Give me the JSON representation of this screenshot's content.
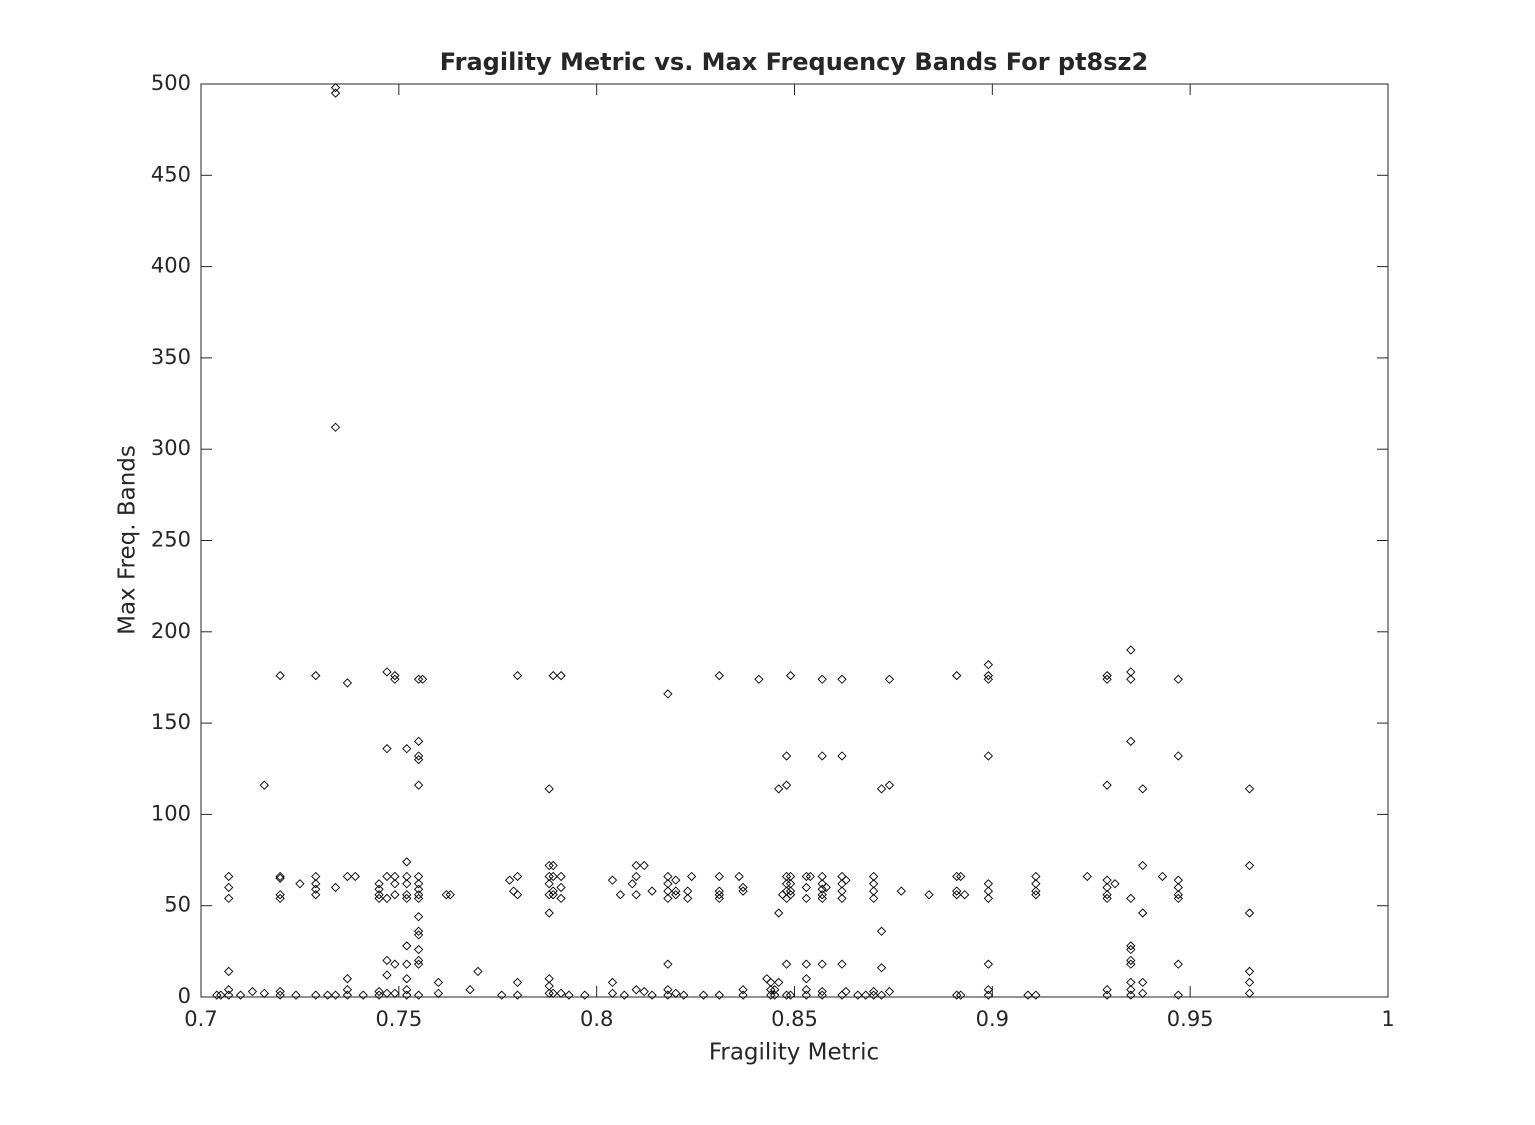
{
  "chart_data": {
    "type": "scatter",
    "title": "Fragility Metric vs. Max Frequency Bands For pt8sz2",
    "x_label": "Fragility Metric",
    "y_label": "Max Freq. Bands",
    "color": "#000000",
    "xlim": [
      0.7,
      1
    ],
    "xticks": [
      0.7,
      0.75,
      0.8,
      0.85,
      0.9,
      0.95,
      1
    ],
    "ylim": [
      0,
      500
    ],
    "yticks": [
      0,
      50,
      100,
      150,
      200,
      250,
      300,
      350,
      400,
      450,
      500
    ],
    "x": [
      0.704,
      0.705,
      0.707,
      0.707,
      0.707,
      0.707,
      0.707,
      0.707,
      0.71,
      0.713,
      0.716,
      0.716,
      0.72,
      0.72,
      0.72,
      0.72,
      0.72,
      0.72,
      0.72,
      0.724,
      0.725,
      0.729,
      0.729,
      0.729,
      0.729,
      0.729,
      0.729,
      0.732,
      0.734,
      0.734,
      0.734,
      0.734,
      0.734,
      0.737,
      0.737,
      0.737,
      0.737,
      0.737,
      0.739,
      0.741,
      0.745,
      0.745,
      0.745,
      0.745,
      0.745,
      0.745,
      0.747,
      0.747,
      0.747,
      0.747,
      0.747,
      0.747,
      0.747,
      0.749,
      0.749,
      0.749,
      0.749,
      0.749,
      0.749,
      0.749,
      0.752,
      0.752,
      0.752,
      0.752,
      0.752,
      0.752,
      0.752,
      0.752,
      0.752,
      0.752,
      0.752,
      0.755,
      0.755,
      0.755,
      0.755,
      0.755,
      0.755,
      0.755,
      0.755,
      0.755,
      0.755,
      0.755,
      0.755,
      0.755,
      0.755,
      0.755,
      0.755,
      0.755,
      0.756,
      0.76,
      0.76,
      0.762,
      0.763,
      0.768,
      0.77,
      0.776,
      0.778,
      0.779,
      0.78,
      0.78,
      0.78,
      0.78,
      0.78,
      0.788,
      0.788,
      0.788,
      0.788,
      0.788,
      0.788,
      0.788,
      0.788,
      0.788,
      0.789,
      0.789,
      0.789,
      0.789,
      0.789,
      0.789,
      0.791,
      0.791,
      0.791,
      0.791,
      0.791,
      0.793,
      0.797,
      0.804,
      0.804,
      0.804,
      0.806,
      0.807,
      0.809,
      0.81,
      0.81,
      0.81,
      0.81,
      0.812,
      0.812,
      0.814,
      0.814,
      0.818,
      0.818,
      0.818,
      0.818,
      0.818,
      0.818,
      0.818,
      0.818,
      0.82,
      0.82,
      0.82,
      0.82,
      0.822,
      0.823,
      0.823,
      0.824,
      0.827,
      0.831,
      0.831,
      0.831,
      0.831,
      0.831,
      0.831,
      0.836,
      0.837,
      0.837,
      0.837,
      0.837,
      0.841,
      0.843,
      0.844,
      0.844,
      0.844,
      0.845,
      0.845,
      0.846,
      0.846,
      0.846,
      0.847,
      0.848,
      0.848,
      0.848,
      0.848,
      0.848,
      0.848,
      0.848,
      0.848,
      0.849,
      0.849,
      0.849,
      0.849,
      0.849,
      0.849,
      0.853,
      0.853,
      0.853,
      0.853,
      0.853,
      0.853,
      0.853,
      0.854,
      0.857,
      0.857,
      0.857,
      0.857,
      0.857,
      0.857,
      0.857,
      0.857,
      0.857,
      0.857,
      0.858,
      0.862,
      0.862,
      0.862,
      0.862,
      0.862,
      0.862,
      0.862,
      0.862,
      0.863,
      0.863,
      0.866,
      0.868,
      0.87,
      0.87,
      0.87,
      0.87,
      0.87,
      0.87,
      0.872,
      0.872,
      0.872,
      0.872,
      0.874,
      0.874,
      0.874,
      0.877,
      0.884,
      0.891,
      0.891,
      0.891,
      0.891,
      0.891,
      0.892,
      0.892,
      0.893,
      0.899,
      0.899,
      0.899,
      0.899,
      0.899,
      0.899,
      0.899,
      0.899,
      0.899,
      0.899,
      0.909,
      0.911,
      0.911,
      0.911,
      0.911,
      0.911,
      0.924,
      0.929,
      0.929,
      0.929,
      0.929,
      0.929,
      0.929,
      0.929,
      0.929,
      0.929,
      0.931,
      0.935,
      0.935,
      0.935,
      0.935,
      0.935,
      0.935,
      0.935,
      0.935,
      0.935,
      0.935,
      0.935,
      0.935,
      0.938,
      0.938,
      0.938,
      0.938,
      0.938,
      0.943,
      0.947,
      0.947,
      0.947,
      0.947,
      0.947,
      0.947,
      0.947,
      0.947,
      0.965,
      0.965,
      0.965,
      0.965,
      0.965,
      0.965
    ],
    "values": [
      1,
      1,
      66,
      60,
      54,
      14,
      4,
      1,
      1,
      3,
      2,
      116,
      176,
      66,
      65,
      56,
      54,
      3,
      1,
      1,
      62,
      176,
      66,
      62,
      59,
      56,
      1,
      1,
      498,
      495,
      312,
      60,
      1,
      172,
      10,
      4,
      1,
      66,
      66,
      1,
      62,
      59,
      56,
      54,
      3,
      1,
      178,
      136,
      66,
      54,
      20,
      12,
      2,
      176,
      174,
      66,
      62,
      56,
      18,
      2,
      136,
      74,
      66,
      62,
      56,
      54,
      28,
      18,
      10,
      4,
      1,
      174,
      140,
      132,
      130,
      116,
      66,
      62,
      59,
      56,
      54,
      44,
      36,
      34,
      26,
      20,
      18,
      1,
      174,
      8,
      2,
      56,
      56,
      4,
      14,
      1,
      64,
      58,
      176,
      66,
      56,
      8,
      1,
      114,
      72,
      66,
      62,
      56,
      46,
      10,
      6,
      2,
      176,
      72,
      66,
      58,
      56,
      2,
      176,
      66,
      60,
      54,
      2,
      1,
      1,
      64,
      8,
      2,
      56,
      1,
      62,
      72,
      66,
      56,
      4,
      72,
      3,
      58,
      1,
      166,
      66,
      62,
      58,
      54,
      18,
      4,
      1,
      64,
      58,
      56,
      2,
      1,
      54,
      58,
      66,
      1,
      176,
      66,
      58,
      56,
      54,
      1,
      66,
      60,
      58,
      4,
      1,
      174,
      10,
      8,
      4,
      1,
      4,
      1,
      114,
      46,
      8,
      56,
      132,
      116,
      66,
      62,
      58,
      54,
      18,
      1,
      176,
      66,
      62,
      58,
      56,
      1,
      66,
      60,
      54,
      18,
      10,
      4,
      1,
      66,
      174,
      132,
      66,
      62,
      59,
      56,
      54,
      18,
      3,
      1,
      60,
      174,
      132,
      66,
      62,
      58,
      54,
      18,
      1,
      64,
      3,
      1,
      1,
      66,
      62,
      58,
      54,
      3,
      1,
      114,
      36,
      16,
      1,
      116,
      174,
      3,
      58,
      56,
      176,
      66,
      58,
      56,
      1,
      66,
      1,
      56,
      182,
      176,
      174,
      132,
      62,
      58,
      54,
      18,
      4,
      1,
      1,
      1,
      66,
      62,
      58,
      56,
      66,
      176,
      174,
      116,
      64,
      60,
      56,
      54,
      4,
      1,
      62,
      190,
      178,
      174,
      140,
      54,
      28,
      26,
      20,
      18,
      8,
      4,
      1,
      114,
      72,
      46,
      8,
      2,
      66,
      174,
      132,
      64,
      60,
      56,
      54,
      18,
      1,
      114,
      72,
      46,
      14,
      8,
      2
    ]
  }
}
